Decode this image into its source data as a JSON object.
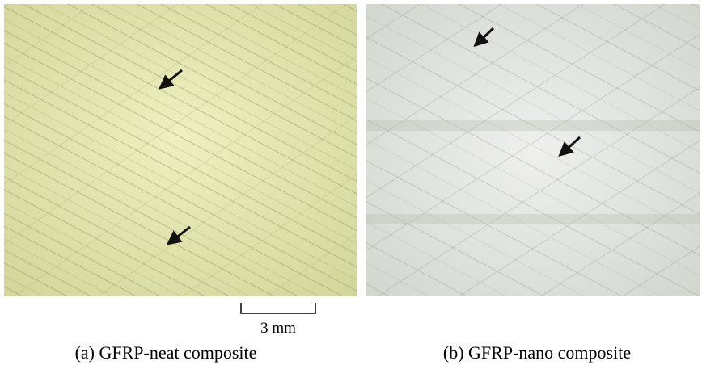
{
  "figure": {
    "panels": [
      {
        "caption": "(a) GFRP-neat composite"
      },
      {
        "caption": "(b) GFRP-nano composite"
      }
    ],
    "scale_bar": {
      "label": "3 mm"
    }
  }
}
